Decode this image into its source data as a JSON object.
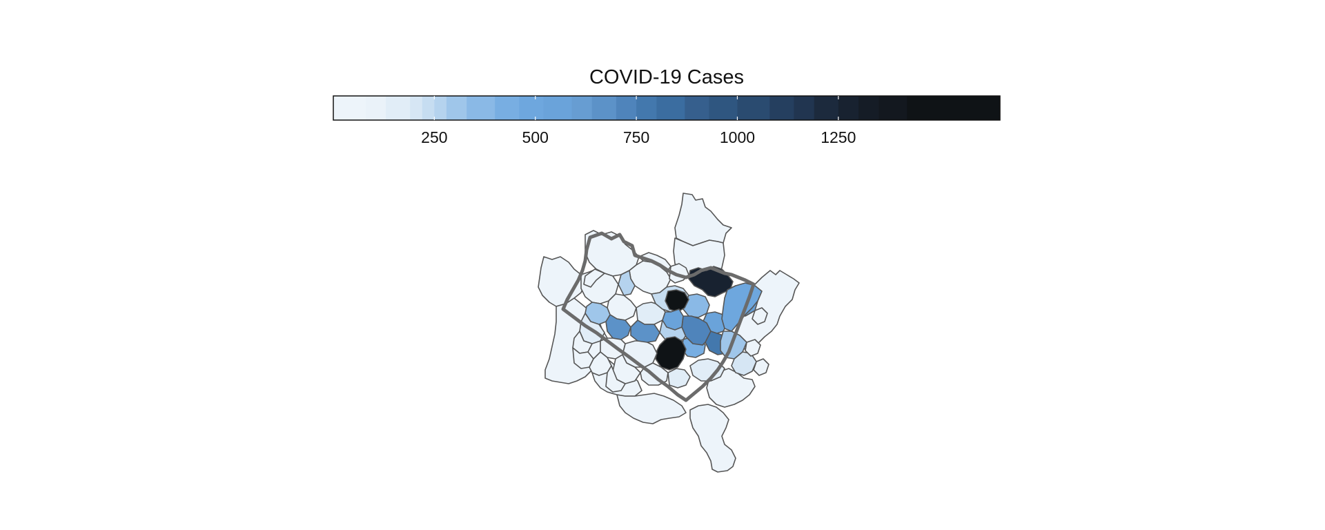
{
  "legend": {
    "title": "COVID-19 Cases",
    "domain": [
      0,
      1650
    ],
    "ticks": [
      250,
      500,
      750,
      1000,
      1250
    ],
    "bins": [
      {
        "to": 80,
        "color": "#edf4fa"
      },
      {
        "to": 130,
        "color": "#eaf2f9"
      },
      {
        "to": 190,
        "color": "#e1edf7"
      },
      {
        "to": 220,
        "color": "#d6e6f4"
      },
      {
        "to": 250,
        "color": "#c6ddf1"
      },
      {
        "to": 280,
        "color": "#b5d3ee"
      },
      {
        "to": 330,
        "color": "#9fc6ea"
      },
      {
        "to": 400,
        "color": "#8ab9e6"
      },
      {
        "to": 460,
        "color": "#78aee2"
      },
      {
        "to": 520,
        "color": "#6ea7de"
      },
      {
        "to": 590,
        "color": "#6aa3da"
      },
      {
        "to": 640,
        "color": "#679dd2"
      },
      {
        "to": 700,
        "color": "#5c92c8"
      },
      {
        "to": 750,
        "color": "#4f84bb"
      },
      {
        "to": 800,
        "color": "#4378ad"
      },
      {
        "to": 870,
        "color": "#3b6da0"
      },
      {
        "to": 930,
        "color": "#365f8d"
      },
      {
        "to": 1000,
        "color": "#2f5680"
      },
      {
        "to": 1080,
        "color": "#2a4b70"
      },
      {
        "to": 1140,
        "color": "#253f5f"
      },
      {
        "to": 1190,
        "color": "#213550"
      },
      {
        "to": 1250,
        "color": "#1c2a3d"
      },
      {
        "to": 1300,
        "color": "#182230"
      },
      {
        "to": 1350,
        "color": "#151c26"
      },
      {
        "to": 1420,
        "color": "#13181f"
      },
      {
        "to": 1650,
        "color": "#0f1316"
      }
    ]
  },
  "map": {
    "zip_values": [
      30,
      45,
      60,
      35,
      20,
      55,
      70,
      40,
      25,
      50,
      65,
      30,
      45,
      180,
      230,
      260,
      350,
      420,
      540,
      620,
      720,
      780,
      1300,
      1450,
      1500,
      480,
      300,
      210,
      160,
      90,
      100,
      140,
      260,
      560,
      650,
      700,
      310,
      150,
      80,
      40,
      30,
      50,
      60,
      35,
      45,
      25,
      20,
      55,
      70,
      40
    ]
  }
}
